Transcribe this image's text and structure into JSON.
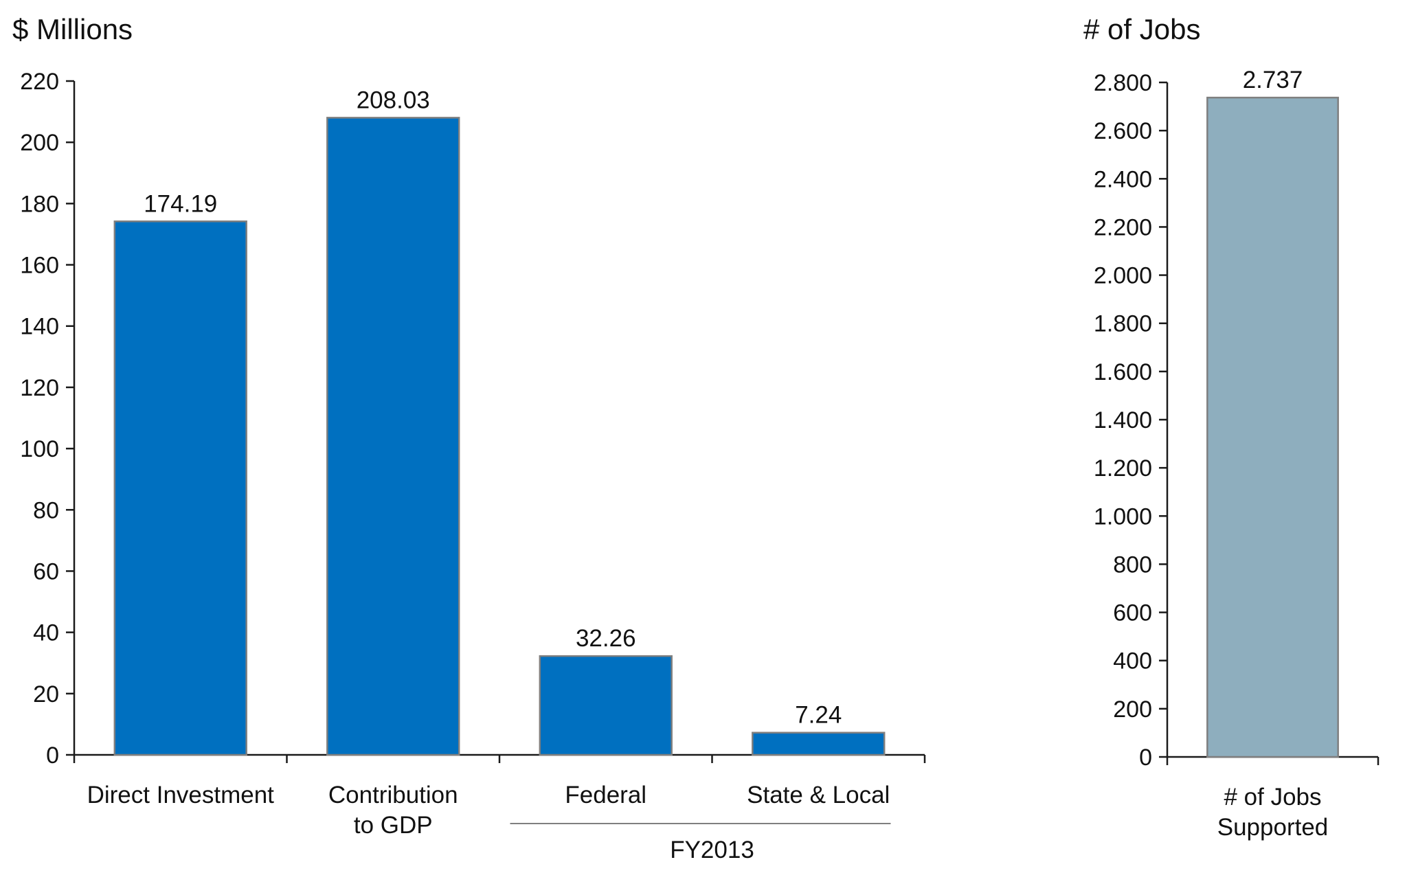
{
  "colors": {
    "left_bar": "#0070C0",
    "right_bar": "#8EAEBE",
    "bar_edge": "#7F7F7F",
    "axis": "#1A1A1A",
    "group_line": "#7F7F7F"
  },
  "chart_data": [
    {
      "type": "bar",
      "title": "",
      "ylabel": "$ Millions",
      "xlabel": "",
      "categories": [
        [
          "Direct Investment"
        ],
        [
          "Contribution",
          "to GDP"
        ],
        [
          "Federal"
        ],
        [
          "State & Local"
        ]
      ],
      "values": [
        174.19,
        208.03,
        32.26,
        7.24
      ],
      "value_labels": [
        "174.19",
        "208.03",
        "32.26",
        "7.24"
      ],
      "ylim": [
        0,
        220
      ],
      "yticks": [
        0,
        20,
        40,
        60,
        80,
        100,
        120,
        140,
        160,
        180,
        200,
        220
      ],
      "ytick_labels": [
        "0",
        "20",
        "40",
        "60",
        "80",
        "100",
        "120",
        "140",
        "160",
        "180",
        "200",
        "220"
      ],
      "group": {
        "label": "FY2013",
        "categories": [
          "Federal",
          "State & Local"
        ]
      },
      "grid": false,
      "legend": "none"
    },
    {
      "type": "bar",
      "title": "",
      "ylabel": "# of Jobs",
      "xlabel": "",
      "categories": [
        [
          "# of Jobs",
          "Supported"
        ]
      ],
      "values": [
        2737
      ],
      "value_labels": [
        "2.737"
      ],
      "ylim": [
        0,
        2800
      ],
      "yticks": [
        0,
        200,
        400,
        600,
        800,
        1000,
        1200,
        1400,
        1600,
        1800,
        2000,
        2200,
        2400,
        2600,
        2800
      ],
      "ytick_labels": [
        "0",
        "200",
        "400",
        "600",
        "800",
        "1.000",
        "1.200",
        "1.400",
        "1.600",
        "1.800",
        "2.000",
        "2.200",
        "2.400",
        "2.600",
        "2.800"
      ],
      "grid": false,
      "legend": "none"
    }
  ]
}
